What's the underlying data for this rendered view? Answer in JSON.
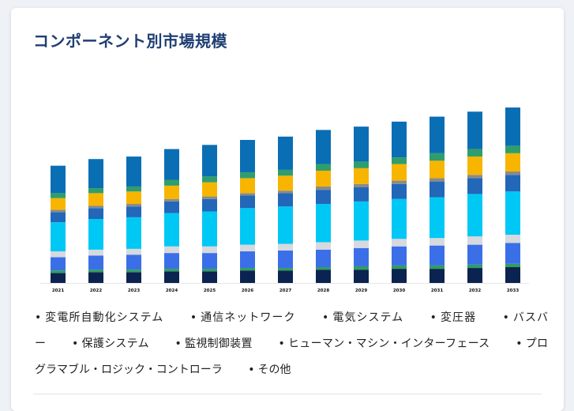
{
  "title": "コンポーネント別市場規模",
  "chart_data": {
    "type": "stacked-bar",
    "title": "",
    "xlabel": "",
    "ylabel": "",
    "categories": [
      "2021",
      "2022",
      "2023",
      "2024",
      "2025",
      "2026",
      "2027",
      "2028",
      "2029",
      "2030",
      "2031",
      "2032",
      "2033"
    ],
    "series": [
      {
        "name": "その他",
        "color": "#0b2350",
        "values": [
          12,
          13,
          13,
          14,
          14,
          15,
          15,
          16,
          16,
          17,
          17,
          18,
          19
        ]
      },
      {
        "name": "プログラマブル・ロジック・コントローラ",
        "color": "#2e9f5c",
        "values": [
          3,
          3,
          3,
          3,
          3,
          3,
          3,
          3,
          4,
          4,
          4,
          4,
          4
        ]
      },
      {
        "name": "ヒューマン・マシン・インターフェース",
        "color": "#3b6fe8",
        "values": [
          16,
          17,
          18,
          19,
          19,
          20,
          21,
          21,
          22,
          23,
          24,
          24,
          25
        ]
      },
      {
        "name": "監視制御装置",
        "color": "#d6d9de",
        "values": [
          7,
          7,
          7,
          8,
          8,
          8,
          8,
          9,
          9,
          9,
          9,
          10,
          10
        ]
      },
      {
        "name": "保護システム",
        "color": "#00c8f5",
        "values": [
          35,
          37,
          38,
          40,
          42,
          44,
          45,
          46,
          47,
          48,
          49,
          51,
          52
        ]
      },
      {
        "name": "バスバー",
        "color": "#2267b8",
        "values": [
          12,
          13,
          13,
          14,
          15,
          15,
          16,
          17,
          17,
          18,
          19,
          19,
          20
        ]
      },
      {
        "name": "変圧器",
        "color": "#8a8a8a",
        "values": [
          3,
          3,
          3,
          3,
          3,
          3,
          3,
          4,
          4,
          4,
          4,
          4,
          4
        ]
      },
      {
        "name": "電気システム",
        "color": "#f7b500",
        "values": [
          14,
          15,
          15,
          16,
          17,
          18,
          18,
          19,
          19,
          20,
          21,
          22,
          22
        ]
      },
      {
        "name": "通信ネットワーク",
        "color": "#2f9e6c",
        "values": [
          6,
          6,
          6,
          7,
          7,
          7,
          7,
          8,
          8,
          8,
          9,
          9,
          9
        ]
      },
      {
        "name": "変電所自動化システム",
        "color": "#0a6eb4",
        "values": [
          33,
          35,
          36,
          37,
          38,
          39,
          40,
          41,
          42,
          43,
          44,
          45,
          46
        ]
      }
    ]
  },
  "legend": [
    {
      "bullet": "•",
      "label": "変電所自動化システム"
    },
    {
      "bullet": "•",
      "label": "通信ネットワーク"
    },
    {
      "bullet": "•",
      "label": "電気システム"
    },
    {
      "bullet": "•",
      "label": "変圧器"
    },
    {
      "bullet": "•",
      "label": "バスバー"
    },
    {
      "bullet": "•",
      "label": "保護システム"
    },
    {
      "bullet": "•",
      "label": "監視制御装置"
    },
    {
      "bullet": "•",
      "label": "ヒューマン・マシン・インターフェース"
    },
    {
      "bullet": "•",
      "label": "プログラマブル・ロジック・コントローラ"
    },
    {
      "bullet": "•",
      "label": "その他"
    }
  ]
}
